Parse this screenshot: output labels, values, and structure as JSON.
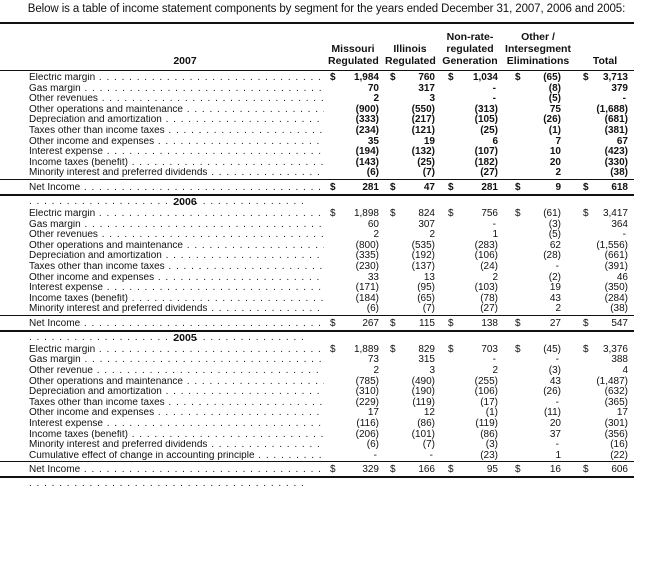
{
  "intro": "Below is a table of income statement components by segment for the years ended December 31, 2007, 2006 and 2005:",
  "headers": {
    "missouri": [
      "Missouri",
      "Regulated"
    ],
    "illinois": [
      "Illinois",
      "Regulated"
    ],
    "nonrate": [
      "Non-rate-",
      "regulated",
      "Generation"
    ],
    "other": [
      "Other /",
      "Intersegment",
      "Eliminations"
    ],
    "total": [
      "Total"
    ]
  },
  "currency": "$",
  "sections": [
    {
      "year": "2007",
      "bold": true,
      "rows": [
        {
          "label": "Electric margin",
          "values": [
            "1,984",
            "760",
            "1,034",
            "(65)",
            "3,713"
          ],
          "dollar": true
        },
        {
          "label": "Gas margin",
          "values": [
            "70",
            "317",
            "-",
            "(8)",
            "379"
          ]
        },
        {
          "label": "Other revenues",
          "values": [
            "2",
            "3",
            "-",
            "(5)",
            "-"
          ]
        },
        {
          "label": "Other operations and maintenance",
          "values": [
            "(900)",
            "(550)",
            "(313)",
            "75",
            "(1,688)"
          ]
        },
        {
          "label": "Depreciation and amortization",
          "values": [
            "(333)",
            "(217)",
            "(105)",
            "(26)",
            "(681)"
          ]
        },
        {
          "label": "Taxes other than income taxes",
          "values": [
            "(234)",
            "(121)",
            "(25)",
            "(1)",
            "(381)"
          ]
        },
        {
          "label": "Other income and expenses",
          "values": [
            "35",
            "19",
            "6",
            "7",
            "67"
          ]
        },
        {
          "label": "Interest expense",
          "values": [
            "(194)",
            "(132)",
            "(107)",
            "10",
            "(423)"
          ]
        },
        {
          "label": "Income taxes (benefit)",
          "values": [
            "(143)",
            "(25)",
            "(182)",
            "20",
            "(330)"
          ]
        },
        {
          "label": "Minority interest and preferred dividends",
          "values": [
            "(6)",
            "(7)",
            "(27)",
            "2",
            "(38)"
          ]
        }
      ],
      "net": {
        "label": "Net Income",
        "values": [
          "281",
          "47",
          "281",
          "9",
          "618"
        ]
      }
    },
    {
      "year": "2006",
      "bold": false,
      "rows": [
        {
          "label": "Electric margin",
          "values": [
            "1,898",
            "824",
            "756",
            "(61)",
            "3,417"
          ],
          "dollar": true
        },
        {
          "label": "Gas margin",
          "values": [
            "60",
            "307",
            "-",
            "(3)",
            "364"
          ]
        },
        {
          "label": "Other revenues",
          "values": [
            "2",
            "2",
            "1",
            "(5)",
            "-"
          ]
        },
        {
          "label": "Other operations and maintenance",
          "values": [
            "(800)",
            "(535)",
            "(283)",
            "62",
            "(1,556)"
          ]
        },
        {
          "label": "Depreciation and amortization",
          "values": [
            "(335)",
            "(192)",
            "(106)",
            "(28)",
            "(661)"
          ]
        },
        {
          "label": "Taxes other than income taxes",
          "values": [
            "(230)",
            "(137)",
            "(24)",
            "-",
            "(391)"
          ]
        },
        {
          "label": "Other income and expenses",
          "values": [
            "33",
            "13",
            "2",
            "(2)",
            "46"
          ]
        },
        {
          "label": "Interest expense",
          "values": [
            "(171)",
            "(95)",
            "(103)",
            "19",
            "(350)"
          ]
        },
        {
          "label": "Income taxes (benefit)",
          "values": [
            "(184)",
            "(65)",
            "(78)",
            "43",
            "(284)"
          ]
        },
        {
          "label": "Minority interest and preferred dividends",
          "values": [
            "(6)",
            "(7)",
            "(27)",
            "2",
            "(38)"
          ]
        }
      ],
      "net": {
        "label": "Net Income",
        "values": [
          "267",
          "115",
          "138",
          "27",
          "547"
        ]
      }
    },
    {
      "year": "2005",
      "bold": false,
      "rows": [
        {
          "label": "Electric margin",
          "values": [
            "1,889",
            "829",
            "703",
            "(45)",
            "3,376"
          ],
          "dollar": true
        },
        {
          "label": "Gas margin",
          "values": [
            "73",
            "315",
            "-",
            "-",
            "388"
          ]
        },
        {
          "label": "Other revenue",
          "values": [
            "2",
            "3",
            "2",
            "(3)",
            "4"
          ]
        },
        {
          "label": "Other operations and maintenance",
          "values": [
            "(785)",
            "(490)",
            "(255)",
            "43",
            "(1,487)"
          ]
        },
        {
          "label": "Depreciation and amortization",
          "values": [
            "(310)",
            "(190)",
            "(106)",
            "(26)",
            "(632)"
          ]
        },
        {
          "label": "Taxes other than income taxes",
          "values": [
            "(229)",
            "(119)",
            "(17)",
            "-",
            "(365)"
          ]
        },
        {
          "label": "Other income and expenses",
          "values": [
            "17",
            "12",
            "(1)",
            "(11)",
            "17"
          ]
        },
        {
          "label": "Interest expense",
          "values": [
            "(116)",
            "(86)",
            "(119)",
            "20",
            "(301)"
          ]
        },
        {
          "label": "Income taxes (benefit)",
          "values": [
            "(206)",
            "(101)",
            "(86)",
            "37",
            "(356)"
          ]
        },
        {
          "label": "Minority interest and preferred dividends",
          "values": [
            "(6)",
            "(7)",
            "(3)",
            "-",
            "(16)"
          ]
        },
        {
          "label": "Cumulative effect of change in accounting principle",
          "values": [
            "-",
            "-",
            "(23)",
            "1",
            "(22)"
          ]
        }
      ],
      "net": {
        "label": "Net Income",
        "values": [
          "329",
          "166",
          "95",
          "16",
          "606"
        ]
      }
    }
  ]
}
